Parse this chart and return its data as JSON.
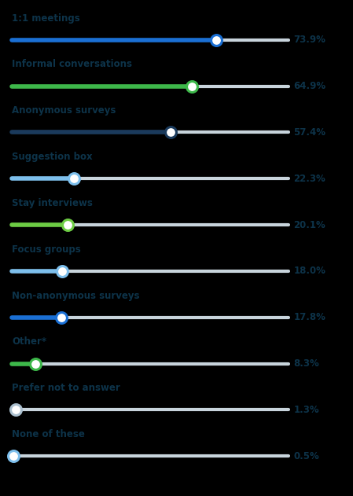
{
  "categories": [
    "1:1 meetings",
    "Informal conversations",
    "Anonymous surveys",
    "Suggestion box",
    "Stay interviews",
    "Focus groups",
    "Non-anonymous surveys",
    "Other*",
    "Prefer not to answer",
    "None of these"
  ],
  "values": [
    73.9,
    64.9,
    57.4,
    22.3,
    20.1,
    18.0,
    17.8,
    8.3,
    1.3,
    0.5
  ],
  "labels": [
    "73.9%",
    "64.9%",
    "57.4%",
    "22.3%",
    "20.1%",
    "18.0%",
    "17.8%",
    "8.3%",
    "1.3%",
    "0.5%"
  ],
  "track_color": "#c8d4dc",
  "fill_colors": [
    "#1a6fd4",
    "#3db84a",
    "#1a3a5c",
    "#7dbfec",
    "#6dcc44",
    "#7dbfec",
    "#1a6fd4",
    "#3db84a",
    "#aabfce",
    "#7dbfec"
  ],
  "label_color": "#0d3349",
  "value_color": "#0d3349",
  "bg_color": "#000000",
  "track_max": 100,
  "figsize": [
    4.49,
    6.31
  ],
  "dpi": 100
}
